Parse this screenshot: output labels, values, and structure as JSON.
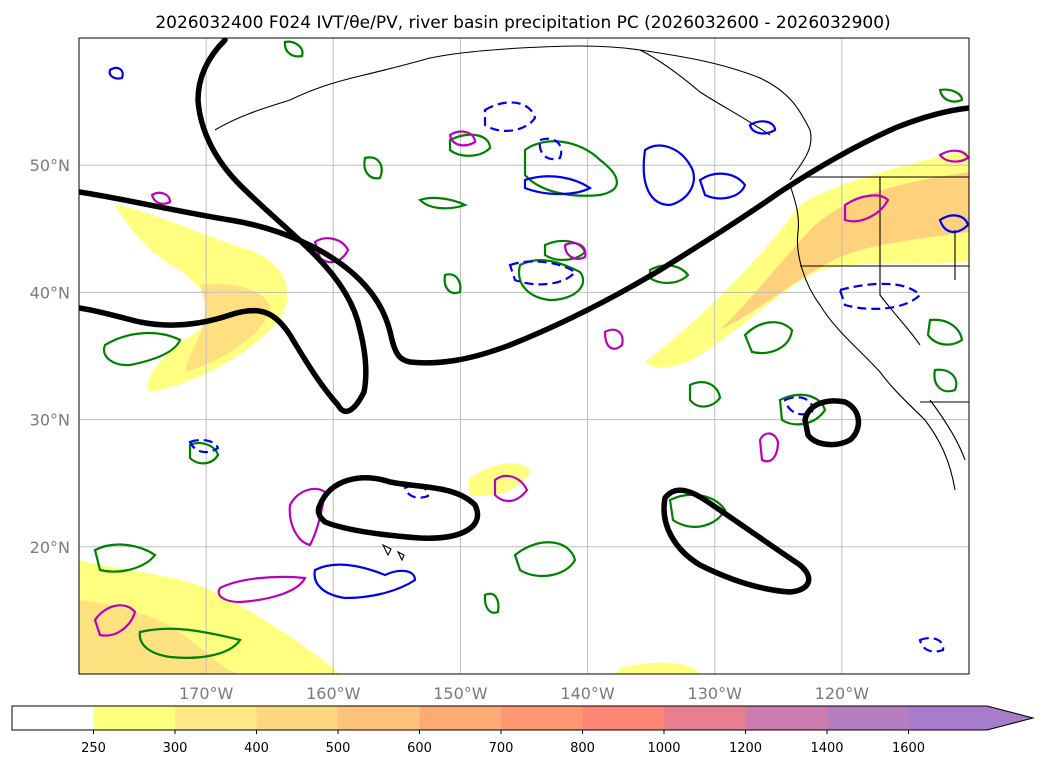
{
  "title": "2026032400 F024 IVT/θe/PV, river basin precipitation PC (2026032600 - 2026032900)",
  "lat_ticks": [
    {
      "label": "50°N",
      "lat": 50
    },
    {
      "label": "40°N",
      "lat": 40
    },
    {
      "label": "30°N",
      "lat": 30
    },
    {
      "label": "20°N",
      "lat": 20
    }
  ],
  "lon_ticks": [
    {
      "label": "170°W",
      "lon": -170
    },
    {
      "label": "160°W",
      "lon": -160
    },
    {
      "label": "150°W",
      "lon": -150
    },
    {
      "label": "140°W",
      "lon": -140
    },
    {
      "label": "130°W",
      "lon": -130
    },
    {
      "label": "120°W",
      "lon": -120
    }
  ],
  "map_extent": {
    "lon_min": -180,
    "lon_max": -110,
    "lat_min": 10,
    "lat_max": 60
  },
  "colorbar": {
    "ticks": [
      "250",
      "300",
      "400",
      "500",
      "600",
      "700",
      "800",
      "1000",
      "1200",
      "1400",
      "1600"
    ],
    "colors": [
      "#ffffff",
      "#ffff80",
      "#ffe986",
      "#ffd680",
      "#ffc27c",
      "#ffaa76",
      "#ff9772",
      "#ff8575",
      "#e77f8e",
      "#cc7cad",
      "#b67dc1",
      "#a77dcb"
    ],
    "extend": "max"
  },
  "overlay_colors": {
    "theta_e": "#000000",
    "pv_positive": "#008000",
    "pv_blue": "#0000ee",
    "pv_magenta": "#bb00bb"
  }
}
